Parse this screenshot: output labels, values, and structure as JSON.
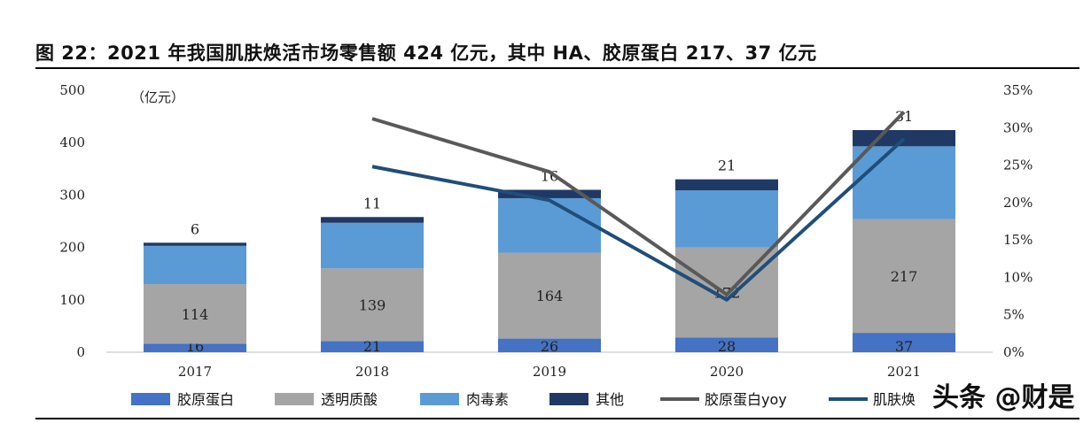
{
  "title": "图 22：2021 年我国肌肤焕活市场零售额 424 亿元，其中 HA、胶原蛋白 217、37 亿元",
  "watermark": "头条 @财是",
  "chart_data": {
    "type": "bar",
    "stacked": true,
    "unit_label": "（亿元）",
    "categories": [
      "2017",
      "2018",
      "2019",
      "2020",
      "2021"
    ],
    "ylim": [
      0,
      500
    ],
    "yticks": [
      0,
      100,
      200,
      300,
      400,
      500
    ],
    "y2lim": [
      0,
      35
    ],
    "y2ticks": [
      "0%",
      "5%",
      "10%",
      "15%",
      "20%",
      "25%",
      "30%",
      "35%"
    ],
    "bar_series": [
      {
        "name": "胶原蛋白",
        "color": "#4472c4",
        "values": [
          16,
          21,
          26,
          28,
          37
        ],
        "labels": [
          "16",
          "21",
          "26",
          "28",
          "37"
        ]
      },
      {
        "name": "透明质酸",
        "color": "#a5a5a5",
        "values": [
          114,
          139,
          164,
          172,
          217
        ],
        "labels": [
          "114",
          "139",
          "164",
          "172",
          "217"
        ]
      },
      {
        "name": "肉毒素",
        "color": "#5b9bd5",
        "values": [
          73,
          87,
          104,
          109,
          139
        ]
      },
      {
        "name": "其他",
        "color": "#203864",
        "values": [
          6,
          11,
          16,
          21,
          31
        ],
        "labels": [
          "6",
          "11",
          "16",
          "21",
          "31"
        ]
      }
    ],
    "line_series": [
      {
        "name": "胶原蛋白yoy",
        "color": "#595959",
        "axis": "right",
        "values": [
          null,
          31.2,
          24.1,
          7.7,
          32.1
        ]
      },
      {
        "name": "肌肤焕",
        "color": "#1f4e79",
        "axis": "right",
        "values": [
          null,
          24.8,
          20.3,
          7.0,
          28.5
        ]
      }
    ],
    "legend_position": "bottom"
  }
}
